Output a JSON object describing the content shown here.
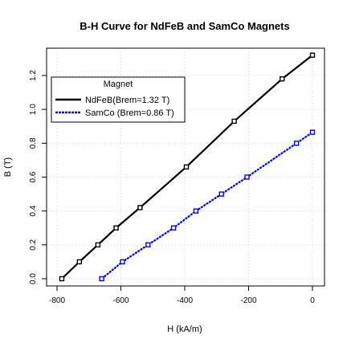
{
  "chart_data": {
    "type": "line",
    "title": "B-H Curve for NdFeB and SamCo Magnets",
    "xlabel": "H (kA/m)",
    "ylabel": "B (T)",
    "xlim": [
      -800,
      0
    ],
    "ylim": [
      0,
      1.32
    ],
    "x_ticks": [
      "-800",
      "-600",
      "-400",
      "-200",
      "0"
    ],
    "y_ticks": [
      "0.0",
      "0.2",
      "0.4",
      "0.6",
      "0.8",
      "1.0",
      "1.2"
    ],
    "grid": true,
    "legend": {
      "title": "Magnet",
      "placement": "top-left"
    },
    "series": [
      {
        "name": "NdFeB(Brem=1.32 T)",
        "color": "#000000",
        "x": [
          -785,
          -730,
          -672,
          -615,
          -540,
          -395,
          -245,
          -95,
          0
        ],
        "y": [
          0.0,
          0.1,
          0.2,
          0.3,
          0.42,
          0.66,
          0.93,
          1.18,
          1.32
        ]
      },
      {
        "name": "SamCo (Brem=0.86 T)",
        "color": "#0000ff",
        "x": [
          -660,
          -595,
          -515,
          -435,
          -365,
          -285,
          -205,
          -50,
          0
        ],
        "y": [
          0.0,
          0.1,
          0.2,
          0.3,
          0.4,
          0.5,
          0.6,
          0.8,
          0.865
        ]
      }
    ]
  }
}
